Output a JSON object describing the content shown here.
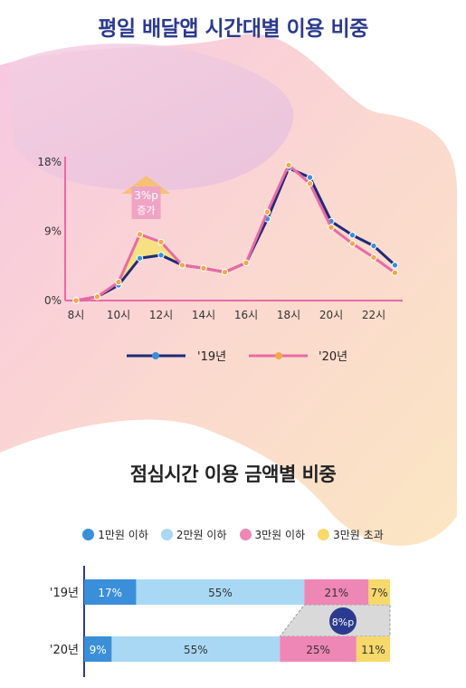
{
  "titles": {
    "top": "평일 배달앱 시간대별 이용 비중",
    "bottom": "점심시간 이용 금액별 비중"
  },
  "colors": {
    "series_2019": "#1f2a78",
    "series_2019_marker": "#3a8fd8",
    "series_2020": "#e96aa3",
    "series_2020_marker": "#f4a84b",
    "callout_fill": "#f0a4c4",
    "callout_text": "#ffffff",
    "highlight_fill": "#f4e27a",
    "bar_under_10k": "#3a8fd8",
    "bar_under_20k": "#a9d8f5",
    "bar_under_30k": "#ee86b6",
    "bar_over_30k": "#f7d86a",
    "badge": "#2b3a8f"
  },
  "chart_data": [
    {
      "type": "line",
      "title": "평일 배달앱 시간대별 이용 비중",
      "x": [
        8,
        9,
        10,
        11,
        12,
        13,
        14,
        15,
        16,
        17,
        18,
        19,
        20,
        21,
        22,
        23
      ],
      "x_tick_values": [
        8,
        10,
        12,
        14,
        16,
        18,
        20,
        22
      ],
      "x_tick_labels": [
        "8시",
        "10시",
        "12시",
        "14시",
        "16시",
        "18시",
        "20시",
        "22시"
      ],
      "y_tick_values": [
        0,
        9,
        18
      ],
      "y_tick_labels": [
        "0%",
        "9%",
        "18%"
      ],
      "ylim": [
        0,
        18
      ],
      "series": [
        {
          "name": "'19년",
          "values": [
            0.0,
            0.5,
            2.0,
            5.5,
            5.9,
            4.6,
            4.2,
            3.7,
            4.9,
            10.6,
            17.2,
            16.0,
            10.3,
            8.5,
            7.1,
            4.6
          ]
        },
        {
          "name": "'20년",
          "values": [
            0.0,
            0.5,
            2.4,
            8.6,
            7.6,
            4.6,
            4.2,
            3.7,
            4.9,
            11.5,
            17.6,
            15.2,
            9.5,
            7.4,
            5.6,
            3.6
          ]
        }
      ],
      "annotation": {
        "value": "3%p",
        "label": "증가"
      },
      "legend": "bottom"
    },
    {
      "type": "bar",
      "orientation": "horizontal-stacked",
      "title": "점심시간 이용 금액별 비중",
      "categories": [
        "'19년",
        "'20년"
      ],
      "series": [
        {
          "name": "1만원 이하",
          "values": [
            17,
            9
          ]
        },
        {
          "name": "2만원 이하",
          "values": [
            55,
            55
          ]
        },
        {
          "name": "3만원 이하",
          "values": [
            21,
            25
          ]
        },
        {
          "name": "3만원 초과",
          "values": [
            7,
            11
          ]
        }
      ],
      "value_labels": [
        [
          "17%",
          "55%",
          "21%",
          "7%"
        ],
        [
          "9%",
          "55%",
          "25%",
          "11%"
        ]
      ],
      "annotation": {
        "value": "8%p"
      },
      "legend": "top"
    }
  ]
}
